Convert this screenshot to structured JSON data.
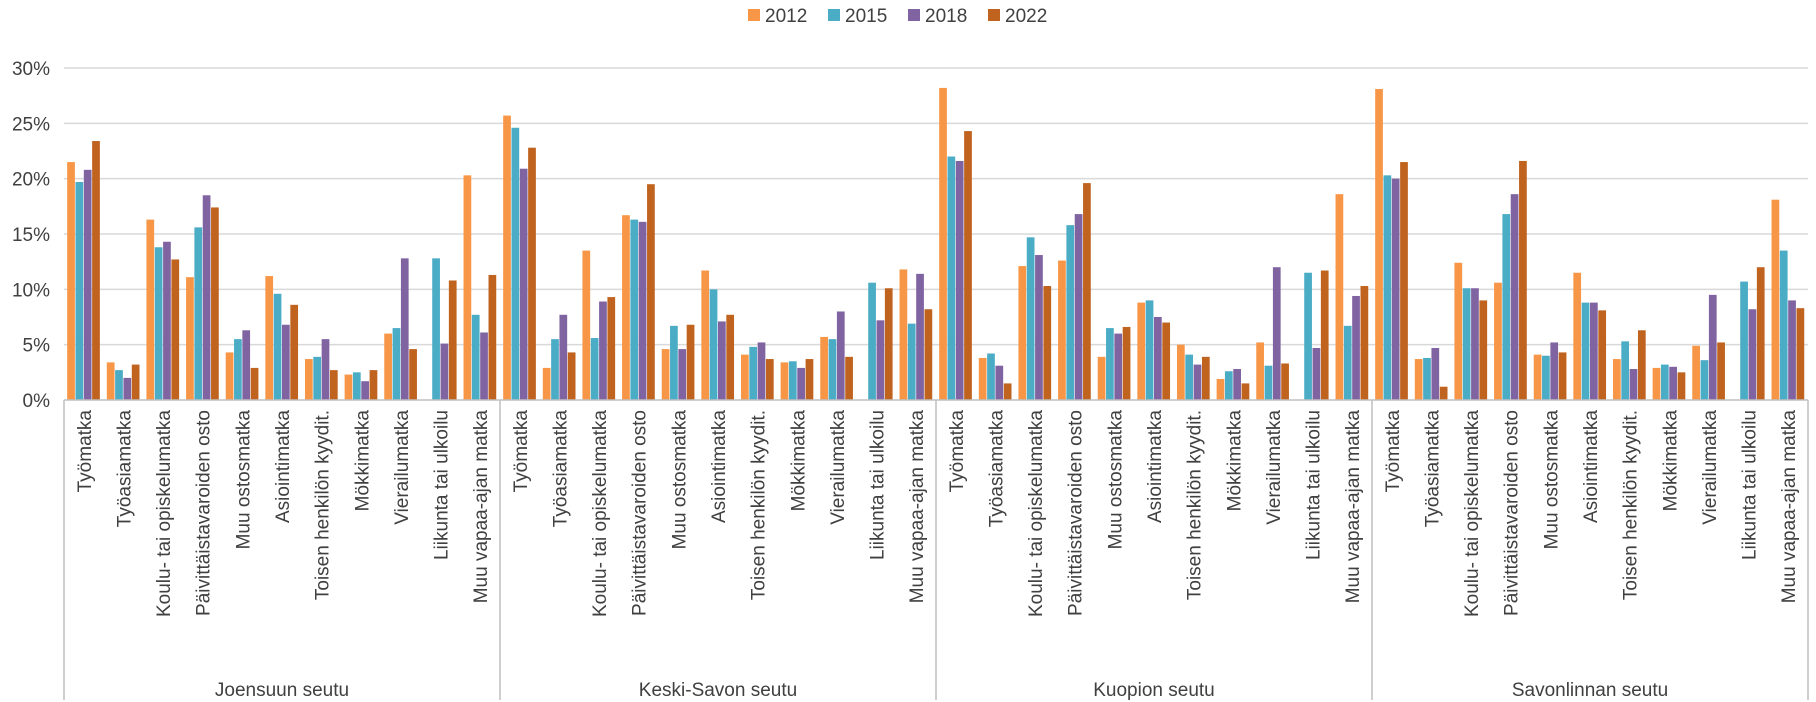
{
  "chart_data": {
    "type": "bar",
    "title": "",
    "xlabel": "",
    "ylabel": "",
    "ylim": [
      0,
      30
    ],
    "ytick_labels": [
      "0%",
      "5%",
      "10%",
      "15%",
      "20%",
      "25%",
      "30%"
    ],
    "grid": true,
    "legend_position": "top-center",
    "colors": {
      "2012": "#F79646",
      "2015": "#4BACC6",
      "2018": "#8064A2",
      "2022": "#C0631E",
      "axis": "#BFBFBF",
      "grid": "#D9D9D9",
      "text": "#404040"
    },
    "categories": [
      "Työmatka",
      "Työasiamatka",
      "Koulu- tai opiskelumatka",
      "Päivittäistavaroiden osto",
      "Muu ostosmatka",
      "Asiointimatka",
      "Toisen henkilön kyydit.",
      "Mökkimatka",
      "Vierailumatka",
      "Liikunta tai ulkoilu",
      "Muu vapaa-ajan matka"
    ],
    "groups": [
      {
        "name": "Joensuun seutu",
        "series": [
          {
            "name": "2012",
            "values": [
              21.5,
              3.4,
              16.3,
              11.1,
              4.3,
              11.2,
              3.7,
              2.3,
              6.0,
              0,
              20.3
            ]
          },
          {
            "name": "2015",
            "values": [
              19.7,
              2.7,
              13.8,
              15.6,
              5.5,
              9.6,
              3.9,
              2.5,
              6.5,
              12.8,
              7.7
            ]
          },
          {
            "name": "2018",
            "values": [
              20.8,
              2.0,
              14.3,
              18.5,
              6.3,
              6.8,
              5.5,
              1.7,
              12.8,
              5.1,
              6.1
            ]
          },
          {
            "name": "2022",
            "values": [
              23.4,
              3.2,
              12.7,
              17.4,
              2.9,
              8.6,
              2.7,
              2.7,
              4.6,
              10.8,
              11.3
            ]
          }
        ]
      },
      {
        "name": "Keski-Savon seutu",
        "series": [
          {
            "name": "2012",
            "values": [
              25.7,
              2.9,
              13.5,
              16.7,
              4.6,
              11.7,
              4.1,
              3.4,
              5.7,
              0,
              11.8
            ]
          },
          {
            "name": "2015",
            "values": [
              24.6,
              5.5,
              5.6,
              16.3,
              6.7,
              10.0,
              4.8,
              3.5,
              5.5,
              10.6,
              6.9
            ]
          },
          {
            "name": "2018",
            "values": [
              20.9,
              7.7,
              8.9,
              16.1,
              4.6,
              7.1,
              5.2,
              2.9,
              8.0,
              7.2,
              11.4
            ]
          },
          {
            "name": "2022",
            "values": [
              22.8,
              4.3,
              9.3,
              19.5,
              6.8,
              7.7,
              3.7,
              3.7,
              3.9,
              10.1,
              8.2
            ]
          }
        ]
      },
      {
        "name": "Kuopion seutu",
        "series": [
          {
            "name": "2012",
            "values": [
              28.2,
              3.8,
              12.1,
              12.6,
              3.9,
              8.8,
              5.0,
              1.9,
              5.2,
              0,
              18.6
            ]
          },
          {
            "name": "2015",
            "values": [
              22.0,
              4.2,
              14.7,
              15.8,
              6.5,
              9.0,
              4.1,
              2.6,
              3.1,
              11.5,
              6.7
            ]
          },
          {
            "name": "2018",
            "values": [
              21.6,
              3.1,
              13.1,
              16.8,
              6.0,
              7.5,
              3.2,
              2.8,
              12.0,
              4.7,
              9.4
            ]
          },
          {
            "name": "2022",
            "values": [
              24.3,
              1.5,
              10.3,
              19.6,
              6.6,
              7.0,
              3.9,
              1.5,
              3.3,
              11.7,
              10.3
            ]
          }
        ]
      },
      {
        "name": "Savonlinnan seutu",
        "series": [
          {
            "name": "2012",
            "values": [
              28.1,
              3.7,
              12.4,
              10.6,
              4.1,
              11.5,
              3.7,
              2.9,
              4.9,
              0,
              18.1
            ]
          },
          {
            "name": "2015",
            "values": [
              20.3,
              3.8,
              10.1,
              16.8,
              4.0,
              8.8,
              5.3,
              3.2,
              3.6,
              10.7,
              13.5
            ]
          },
          {
            "name": "2018",
            "values": [
              20.0,
              4.7,
              10.1,
              18.6,
              5.2,
              8.8,
              2.8,
              3.0,
              9.5,
              8.2,
              9.0
            ]
          },
          {
            "name": "2022",
            "values": [
              21.5,
              1.2,
              9.0,
              21.6,
              4.3,
              8.1,
              6.3,
              2.5,
              5.2,
              12.0,
              8.3
            ]
          }
        ]
      }
    ]
  }
}
